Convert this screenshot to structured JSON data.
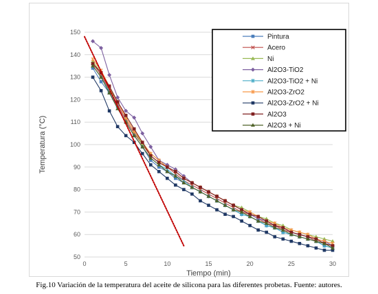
{
  "caption": "Fig.10 Variación de la temperatura del aceite de silicona para las diferentes probetas. Fuente: autores.",
  "chart_data": {
    "type": "line",
    "title": "",
    "xlabel": "Tiempo (min)",
    "ylabel": "Temperatura (°C)",
    "xlim": [
      0,
      30
    ],
    "ylim": [
      50,
      150
    ],
    "xticks": [
      0,
      5,
      10,
      15,
      20,
      25,
      30
    ],
    "yticks": [
      50,
      60,
      70,
      80,
      90,
      100,
      110,
      120,
      130,
      140,
      150
    ],
    "grid": "horizontal",
    "legend_position": "top-right",
    "x": [
      1,
      2,
      3,
      4,
      5,
      6,
      7,
      8,
      9,
      10,
      11,
      12,
      13,
      14,
      15,
      16,
      17,
      18,
      19,
      20,
      21,
      22,
      23,
      24,
      25,
      26,
      27,
      28,
      29,
      30
    ],
    "series": [
      {
        "name": "Pintura",
        "color": "#4a7ebb",
        "marker": "square",
        "values": [
          134,
          128,
          123,
          117,
          110,
          104,
          99,
          93,
          90,
          88,
          85,
          83,
          81,
          79,
          77,
          75,
          73,
          71,
          69,
          68,
          66,
          64,
          63,
          61,
          60,
          59,
          58,
          57,
          55,
          54
        ]
      },
      {
        "name": "Acero",
        "color": "#be4b48",
        "marker": "x",
        "values": [
          136,
          131,
          124,
          118,
          111,
          105,
          100,
          95,
          92,
          90,
          87,
          84,
          82,
          80,
          78,
          76,
          74,
          72,
          70,
          69,
          67,
          65,
          64,
          62,
          61,
          60,
          59,
          57,
          56,
          55
        ]
      },
      {
        "name": "Ni",
        "color": "#98b954",
        "marker": "triangle",
        "values": [
          137,
          132,
          125,
          119,
          112,
          106,
          100,
          96,
          93,
          90,
          88,
          85,
          83,
          81,
          79,
          77,
          75,
          73,
          72,
          70,
          68,
          67,
          65,
          64,
          62,
          61,
          60,
          59,
          58,
          57
        ]
      },
      {
        "name": "Al2O3-TiO2",
        "color": "#7d60a0",
        "marker": "diamond",
        "values": [
          146,
          143,
          131,
          121,
          115,
          112,
          105,
          99,
          93,
          91,
          89,
          86,
          83,
          81,
          79,
          77,
          75,
          73,
          71,
          69,
          67,
          66,
          64,
          63,
          61,
          60,
          59,
          58,
          57,
          55
        ]
      },
      {
        "name": "Al2O3-TiO2 + Ni",
        "color": "#46aac5",
        "marker": "star",
        "values": [
          135,
          130,
          124,
          117,
          110,
          104,
          99,
          94,
          91,
          89,
          86,
          84,
          81,
          79,
          77,
          75,
          73,
          71,
          69,
          68,
          66,
          64,
          63,
          61,
          60,
          59,
          58,
          57,
          55,
          54
        ]
      },
      {
        "name": "Al2O3-ZrO2",
        "color": "#f79646",
        "marker": "star",
        "values": [
          138,
          133,
          126,
          119,
          112,
          106,
          101,
          96,
          93,
          90,
          88,
          85,
          83,
          81,
          79,
          77,
          75,
          73,
          71,
          70,
          68,
          66,
          65,
          63,
          62,
          61,
          60,
          58,
          57,
          56
        ]
      },
      {
        "name": "Al2O3-ZrO2 + Ni",
        "color": "#1f3864",
        "marker": "square",
        "values": [
          130,
          124,
          115,
          108,
          104,
          101,
          96,
          91,
          88,
          85,
          82,
          80,
          78,
          75,
          73,
          71,
          69,
          68,
          66,
          64,
          62,
          61,
          59,
          58,
          57,
          56,
          55,
          54,
          53,
          53
        ]
      },
      {
        "name": "Al2O3",
        "color": "#7f1f1f",
        "marker": "square",
        "values": [
          136,
          132,
          126,
          119,
          113,
          107,
          101,
          95,
          92,
          90,
          88,
          85,
          83,
          81,
          79,
          77,
          75,
          73,
          71,
          69,
          68,
          66,
          64,
          63,
          61,
          60,
          59,
          58,
          56,
          55
        ]
      },
      {
        "name": "Al2O3 + Ni",
        "color": "#4f6228",
        "marker": "triangle",
        "values": [
          135,
          130,
          123,
          116,
          110,
          104,
          99,
          94,
          91,
          88,
          86,
          83,
          81,
          79,
          77,
          75,
          73,
          71,
          70,
          68,
          66,
          65,
          63,
          62,
          60,
          59,
          58,
          57,
          56,
          54
        ]
      }
    ],
    "trendline": {
      "color": "#c00000",
      "style": "dotted",
      "x": [
        0,
        12
      ],
      "y": [
        148,
        55
      ]
    }
  }
}
